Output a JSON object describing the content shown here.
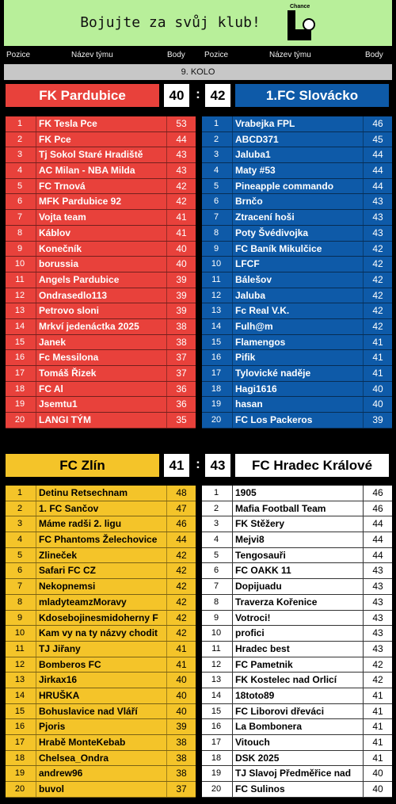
{
  "banner": {
    "title": "Bojujte za svůj klub!",
    "logo_text": "Chance"
  },
  "headers": {
    "pos": "Pozice",
    "name": "Název týmu",
    "pts": "Body"
  },
  "round_label": "9. KOLO",
  "match1": {
    "home": {
      "name": "FK Pardubice",
      "score": "40",
      "color": "#e8413b"
    },
    "away": {
      "name": "1.FC Slovácko",
      "score": "42",
      "color": "#0e5aa8"
    },
    "home_rows": [
      {
        "pos": "1",
        "name": "FK Tesla Pce",
        "pts": "53"
      },
      {
        "pos": "2",
        "name": "FK Pce",
        "pts": "44"
      },
      {
        "pos": "3",
        "name": "Tj Sokol Staré Hradiště",
        "pts": "43"
      },
      {
        "pos": "4",
        "name": "AC Milan - NBA Milda",
        "pts": "43"
      },
      {
        "pos": "5",
        "name": "FC Trnová",
        "pts": "42"
      },
      {
        "pos": "6",
        "name": "MFK Pardubice 92",
        "pts": "42"
      },
      {
        "pos": "7",
        "name": "Vojta team",
        "pts": "41"
      },
      {
        "pos": "8",
        "name": "Káblov",
        "pts": "41"
      },
      {
        "pos": "9",
        "name": "Konečník",
        "pts": "40"
      },
      {
        "pos": "10",
        "name": "borussia",
        "pts": "40"
      },
      {
        "pos": "11",
        "name": "Angels Pardubice",
        "pts": "39"
      },
      {
        "pos": "12",
        "name": "Ondrasedlo113",
        "pts": "39"
      },
      {
        "pos": "13",
        "name": "Petrovo sloni",
        "pts": "39"
      },
      {
        "pos": "14",
        "name": "Mrkví jedenáctka 2025",
        "pts": "38"
      },
      {
        "pos": "15",
        "name": "Janek",
        "pts": "38"
      },
      {
        "pos": "16",
        "name": "Fc Messilona",
        "pts": "37"
      },
      {
        "pos": "17",
        "name": "Tomáš Řizek",
        "pts": "37"
      },
      {
        "pos": "18",
        "name": "FC Al",
        "pts": "36"
      },
      {
        "pos": "19",
        "name": "Jsemtu1",
        "pts": "36"
      },
      {
        "pos": "20",
        "name": "LANGI TÝM",
        "pts": "35"
      }
    ],
    "away_rows": [
      {
        "pos": "1",
        "name": "Vrabejka FPL",
        "pts": "46"
      },
      {
        "pos": "2",
        "name": "ABCD371",
        "pts": "45"
      },
      {
        "pos": "3",
        "name": "Jaluba1",
        "pts": "44"
      },
      {
        "pos": "4",
        "name": "Maty #53",
        "pts": "44"
      },
      {
        "pos": "5",
        "name": "Pineapple commando",
        "pts": "44"
      },
      {
        "pos": "6",
        "name": "Brnčo",
        "pts": "43"
      },
      {
        "pos": "7",
        "name": "Ztracení hoši",
        "pts": "43"
      },
      {
        "pos": "8",
        "name": "Poty Švédivojka",
        "pts": "43"
      },
      {
        "pos": "9",
        "name": "FC Baník Mikulčice",
        "pts": "42"
      },
      {
        "pos": "10",
        "name": "LFCF",
        "pts": "42"
      },
      {
        "pos": "11",
        "name": "Bálešov",
        "pts": "42"
      },
      {
        "pos": "12",
        "name": "Jaluba",
        "pts": "42"
      },
      {
        "pos": "13",
        "name": "Fc Real V.K.",
        "pts": "42"
      },
      {
        "pos": "14",
        "name": "Fulh@m",
        "pts": "42"
      },
      {
        "pos": "15",
        "name": "Flamengos",
        "pts": "41"
      },
      {
        "pos": "16",
        "name": "Pifik",
        "pts": "41"
      },
      {
        "pos": "17",
        "name": "Tylovické naděje",
        "pts": "41"
      },
      {
        "pos": "18",
        "name": "Hagi1616",
        "pts": "40"
      },
      {
        "pos": "19",
        "name": "hasan",
        "pts": "40"
      },
      {
        "pos": "20",
        "name": "FC Los Packeros",
        "pts": "39"
      }
    ]
  },
  "match2": {
    "home": {
      "name": "FC Zlín",
      "score": "41",
      "color": "#f4c429"
    },
    "away": {
      "name": "FC Hradec Králové",
      "score": "43",
      "color": "#ffffff"
    },
    "home_rows": [
      {
        "pos": "1",
        "name": "Detinu Retsechnam",
        "pts": "48"
      },
      {
        "pos": "2",
        "name": "1. FC Sančov",
        "pts": "47"
      },
      {
        "pos": "3",
        "name": "Máme radši 2. ligu",
        "pts": "46"
      },
      {
        "pos": "4",
        "name": "FC Phantoms Želechovice",
        "pts": "44"
      },
      {
        "pos": "5",
        "name": "Zlineček",
        "pts": "42"
      },
      {
        "pos": "6",
        "name": "Safari FC CZ",
        "pts": "42"
      },
      {
        "pos": "7",
        "name": "Nekopnemsi",
        "pts": "42"
      },
      {
        "pos": "8",
        "name": "mladyteamzMoravy",
        "pts": "42"
      },
      {
        "pos": "9",
        "name": "Kdosebojinesmidoherny F",
        "pts": "42"
      },
      {
        "pos": "10",
        "name": "Kam vy na ty názvy chodit",
        "pts": "42"
      },
      {
        "pos": "11",
        "name": "TJ Jiřany",
        "pts": "41"
      },
      {
        "pos": "12",
        "name": "Bomberos FC",
        "pts": "41"
      },
      {
        "pos": "13",
        "name": "Jirkax16",
        "pts": "40"
      },
      {
        "pos": "14",
        "name": "HRUŠKA",
        "pts": "40"
      },
      {
        "pos": "15",
        "name": "Bohuslavice nad Vláří",
        "pts": "40"
      },
      {
        "pos": "16",
        "name": "Pjoris",
        "pts": "39"
      },
      {
        "pos": "17",
        "name": "Hrabě MonteKebab",
        "pts": "38"
      },
      {
        "pos": "18",
        "name": "Chelsea_Ondra",
        "pts": "38"
      },
      {
        "pos": "19",
        "name": "andrew96",
        "pts": "38"
      },
      {
        "pos": "20",
        "name": "buvol",
        "pts": "37"
      }
    ],
    "away_rows": [
      {
        "pos": "1",
        "name": "1905",
        "pts": "46"
      },
      {
        "pos": "2",
        "name": "Mafia Football Team",
        "pts": "46"
      },
      {
        "pos": "3",
        "name": "FK Stěžery",
        "pts": "44"
      },
      {
        "pos": "4",
        "name": "Mejvi8",
        "pts": "44"
      },
      {
        "pos": "5",
        "name": "Tengosauři",
        "pts": "44"
      },
      {
        "pos": "6",
        "name": "FC OAKK 11",
        "pts": "43"
      },
      {
        "pos": "7",
        "name": "Dopijuadu",
        "pts": "43"
      },
      {
        "pos": "8",
        "name": "Traverza Kořenice",
        "pts": "43"
      },
      {
        "pos": "9",
        "name": "Votroci!",
        "pts": "43"
      },
      {
        "pos": "10",
        "name": "profici",
        "pts": "43"
      },
      {
        "pos": "11",
        "name": "Hradec best",
        "pts": "43"
      },
      {
        "pos": "12",
        "name": "FC Pametnik",
        "pts": "42"
      },
      {
        "pos": "13",
        "name": "FK Kostelec nad Orlicí",
        "pts": "42"
      },
      {
        "pos": "14",
        "name": "18toto89",
        "pts": "41"
      },
      {
        "pos": "15",
        "name": "FC Liborovi dřeváci",
        "pts": "41"
      },
      {
        "pos": "16",
        "name": "La Bombonera",
        "pts": "41"
      },
      {
        "pos": "17",
        "name": "Vitouch",
        "pts": "41"
      },
      {
        "pos": "18",
        "name": "DSK 2025",
        "pts": "41"
      },
      {
        "pos": "19",
        "name": "TJ Slavoj Předměřice nad",
        "pts": "40"
      },
      {
        "pos": "20",
        "name": "FC Sulinos",
        "pts": "40"
      }
    ]
  }
}
